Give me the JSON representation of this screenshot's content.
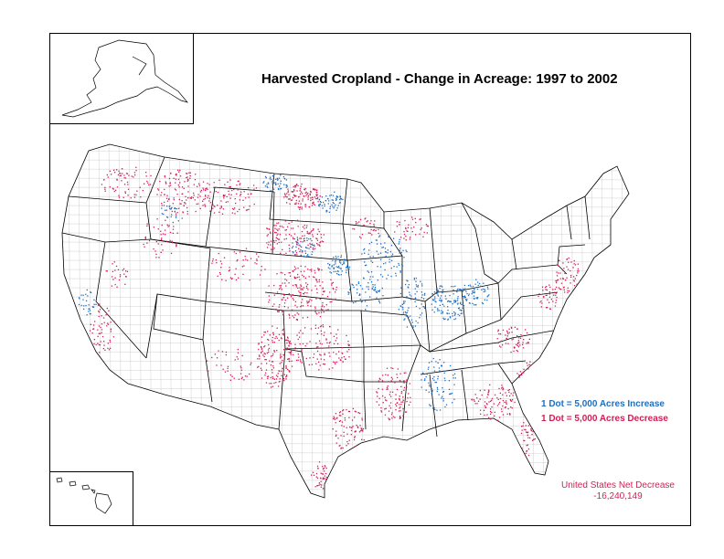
{
  "title": "Harvested Cropland - Change in Acreage:  1997 to 2002",
  "legend": {
    "increase": {
      "label": "1 Dot = 5,000 Acres Increase",
      "color": "#1f6fc0"
    },
    "decrease": {
      "label": "1 Dot = 5,000 Acres Decrease",
      "color": "#d11f55"
    }
  },
  "net": {
    "label": "United States Net Decrease",
    "value": "-16,240,149",
    "color": "#d11f55"
  },
  "colors": {
    "border": "#000000",
    "county_lines": "#bdbdbd",
    "background": "#ffffff"
  }
}
